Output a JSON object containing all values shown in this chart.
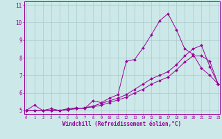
{
  "xlabel": "Windchill (Refroidissement éolien,°C)",
  "bg_color": "#cce8e8",
  "grid_color": "#aacccc",
  "line_color": "#990099",
  "marker_color": "#990099",
  "xlim": [
    -0.2,
    23.2
  ],
  "ylim": [
    4.8,
    11.2
  ],
  "yticks": [
    5,
    6,
    7,
    8,
    9,
    10,
    11
  ],
  "xticks": [
    0,
    1,
    2,
    3,
    4,
    5,
    6,
    7,
    8,
    9,
    10,
    11,
    12,
    13,
    14,
    15,
    16,
    17,
    18,
    19,
    20,
    21,
    22,
    23
  ],
  "series": [
    [
      5.0,
      5.3,
      5.0,
      5.1,
      5.0,
      5.1,
      5.15,
      5.1,
      5.55,
      5.45,
      5.7,
      5.9,
      7.8,
      7.9,
      8.55,
      9.3,
      10.1,
      10.5,
      9.6,
      8.5,
      8.2,
      7.4,
      7.0,
      6.5
    ],
    [
      5.0,
      5.0,
      5.0,
      5.0,
      5.0,
      5.05,
      5.1,
      5.15,
      5.2,
      5.3,
      5.45,
      5.6,
      5.75,
      6.0,
      6.2,
      6.5,
      6.7,
      6.9,
      7.3,
      7.75,
      8.1,
      8.1,
      7.8,
      6.5
    ],
    [
      5.0,
      5.0,
      5.0,
      5.0,
      5.0,
      5.05,
      5.1,
      5.15,
      5.25,
      5.4,
      5.55,
      5.7,
      5.9,
      6.2,
      6.5,
      6.8,
      7.0,
      7.2,
      7.6,
      8.1,
      8.5,
      8.7,
      7.5,
      6.5
    ]
  ]
}
